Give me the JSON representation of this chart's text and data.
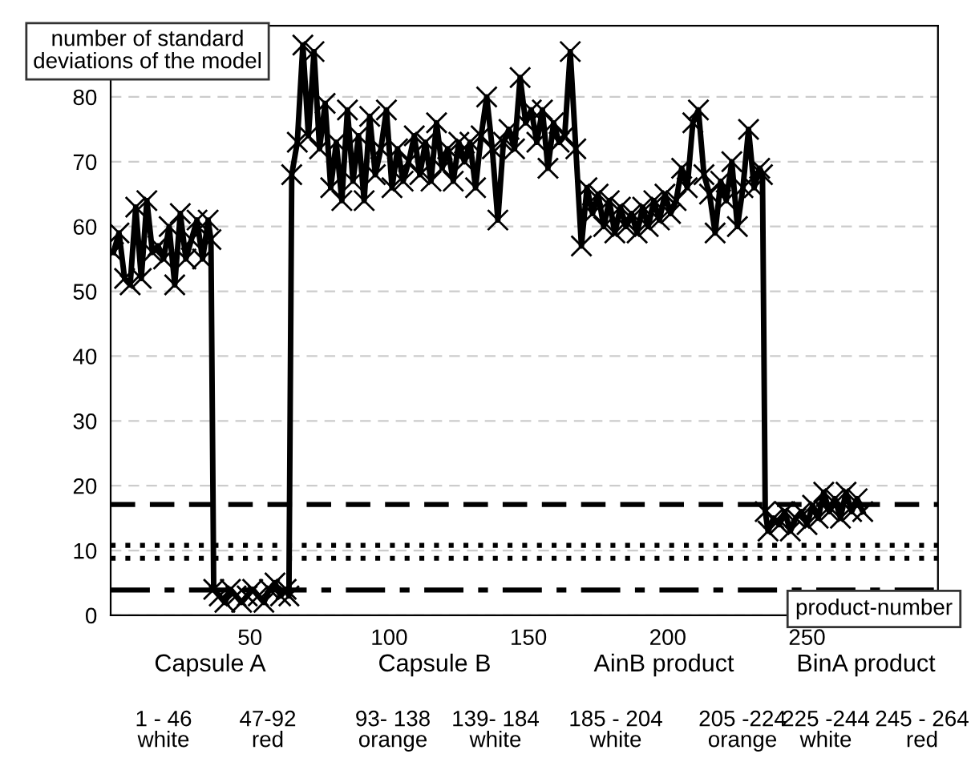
{
  "chart_data": {
    "type": "line",
    "ylabel": "number of standard deviations of the model",
    "xlabel": "product-number",
    "annotations": [
      "Capsule A",
      "Capsule B",
      "AinB product",
      "BinA product",
      "1 - 46\nwhite",
      "47-92\nred",
      "93- 138\norange",
      "139- 184\nwhite",
      "185 - 204\nwhite",
      "205 -224\norange",
      "225 -244\nwhite",
      "245 - 264\nred"
    ],
    "series": [
      {
        "color": "#000000",
        "x": [
          1,
          3,
          5,
          7,
          9,
          11,
          13,
          15,
          17,
          19,
          21,
          23,
          25,
          27,
          29,
          31,
          33,
          35,
          36,
          37,
          39,
          41,
          43,
          45,
          47,
          49,
          51,
          53,
          55,
          57,
          59,
          61,
          63,
          64,
          65,
          67,
          69,
          71,
          73,
          75,
          77,
          79,
          81,
          83,
          85,
          87,
          89,
          91,
          93,
          95,
          97,
          99,
          101,
          103,
          105,
          107,
          109,
          111,
          113,
          115,
          117,
          119,
          121,
          123,
          125,
          127,
          129,
          131,
          133,
          135,
          137,
          139,
          141,
          143,
          145,
          147,
          149,
          151,
          153,
          155,
          157,
          159,
          161,
          163,
          165,
          167,
          169,
          171,
          173,
          175,
          177,
          179,
          181,
          183,
          185,
          187,
          189,
          191,
          193,
          195,
          197,
          199,
          201,
          203,
          205,
          207,
          209,
          211,
          213,
          215,
          217,
          219,
          221,
          223,
          225,
          227,
          229,
          231,
          233,
          234,
          235,
          236,
          238,
          240,
          242,
          244,
          246,
          248,
          250,
          252,
          254,
          256,
          258,
          260,
          262,
          264,
          266,
          268,
          270
        ],
        "values": [
          56,
          59,
          52,
          51,
          63,
          52,
          64,
          56,
          57,
          55,
          60,
          51,
          62,
          55,
          58,
          61,
          55,
          61,
          58,
          4,
          3,
          2,
          4,
          3,
          2,
          3,
          4,
          3,
          2,
          4,
          5,
          3,
          4,
          3,
          68,
          73,
          88,
          74,
          87,
          72,
          79,
          66,
          73,
          64,
          78,
          67,
          74,
          64,
          77,
          68,
          72,
          78,
          66,
          72,
          67,
          70,
          74,
          68,
          73,
          67,
          76,
          69,
          72,
          67,
          73,
          70,
          73,
          66,
          74,
          80,
          72,
          61,
          73,
          75,
          72,
          83,
          76,
          78,
          73,
          78,
          69,
          76,
          73,
          74,
          87,
          72,
          57,
          66,
          62,
          65,
          60,
          64,
          59,
          63,
          60,
          62,
          59,
          63,
          60,
          64,
          61,
          65,
          62,
          64,
          69,
          66,
          76,
          78,
          68,
          65,
          59,
          67,
          64,
          70,
          60,
          66,
          75,
          66,
          69,
          68,
          16,
          13,
          15,
          14,
          16,
          13,
          15,
          16,
          14,
          17,
          15,
          19,
          16,
          18,
          15,
          19,
          16,
          18,
          16
        ]
      }
    ],
    "xlim": [
      0,
      297
    ],
    "ylim": [
      0,
      91
    ],
    "xticks": [
      50,
      100,
      150,
      200,
      250
    ],
    "yticks": [
      0,
      10,
      20,
      30,
      40,
      50,
      60,
      70,
      80
    ],
    "grid": "y",
    "marker": "cross",
    "line_style": "solid",
    "ref_lines": [
      {
        "axis": "y",
        "value": 17.1,
        "line_style": "dashed",
        "color": "#000000"
      },
      {
        "axis": "y",
        "value": 10.8,
        "line_style": "dotted",
        "color": "#000000"
      },
      {
        "axis": "y",
        "value": 8.8,
        "line_style": "dotted",
        "color": "#000000"
      },
      {
        "axis": "y",
        "value": 3.9,
        "line_style": "dashdot",
        "color": "#000000"
      }
    ]
  }
}
